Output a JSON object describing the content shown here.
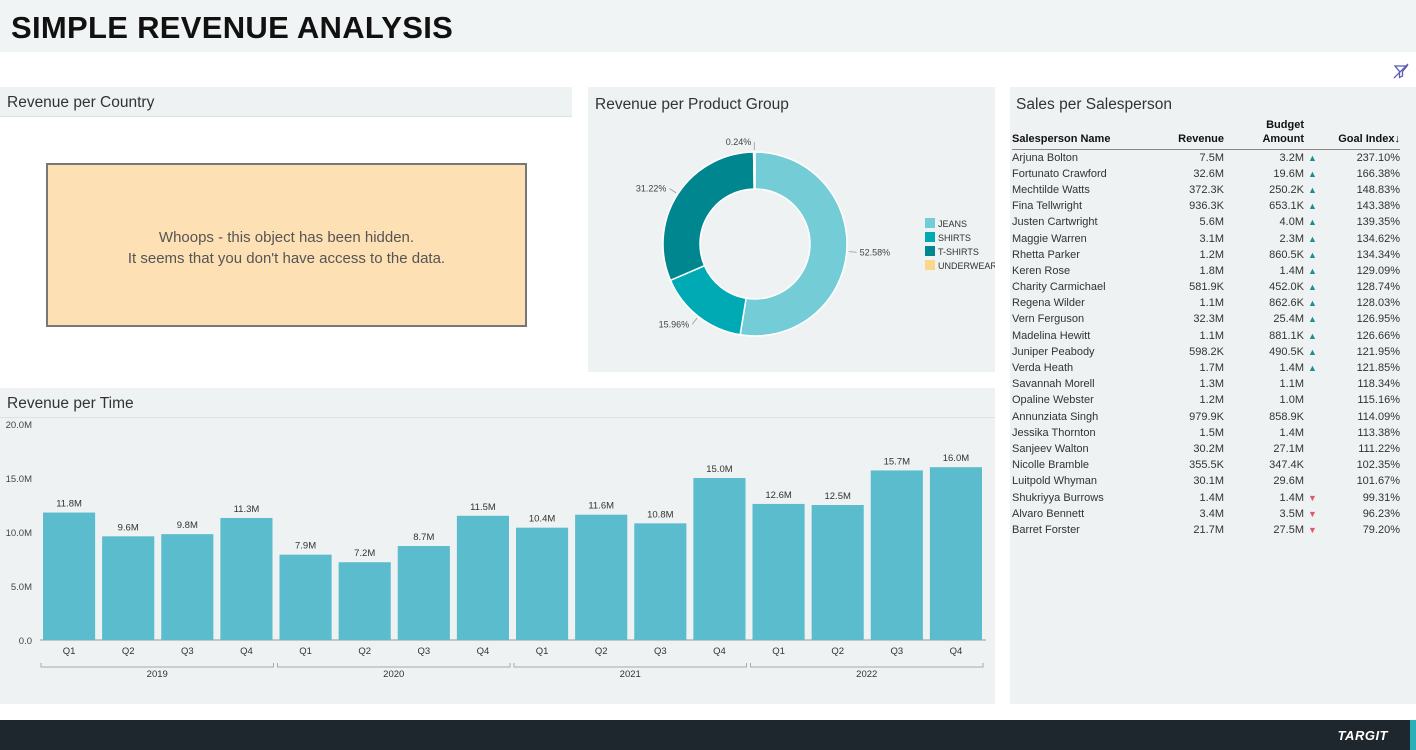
{
  "page": {
    "title": "SIMPLE REVENUE ANALYSIS",
    "brand": "TARGIT"
  },
  "colors": {
    "bar": "#5bbccd",
    "jeans": "#74ccd6",
    "shirts": "#00aab5",
    "tshirts": "#00868f",
    "underwear": "#fbd78a",
    "up": "#1e8f8f",
    "down": "#e05a6a"
  },
  "country_panel": {
    "title": "Revenue per Country",
    "message_line1": "Whoops - this object has been hidden.",
    "message_line2": "It seems that you don't have access to the data."
  },
  "product_panel": {
    "title": "Revenue per Product Group"
  },
  "time_panel": {
    "title": "Revenue per Time"
  },
  "sales_panel": {
    "title": "Sales per Salesperson",
    "columns": {
      "name": "Salesperson Name",
      "revenue": "Revenue",
      "budget_line1": "Budget",
      "budget_line2": "Amount",
      "goal": "Goal Index↓"
    },
    "rows": [
      {
        "name": "Arjuna Bolton",
        "revenue": "7.5M",
        "budget": "3.2M",
        "trend": "up",
        "goal": "237.10%"
      },
      {
        "name": "Fortunato Crawford",
        "revenue": "32.6M",
        "budget": "19.6M",
        "trend": "up",
        "goal": "166.38%"
      },
      {
        "name": "Mechtilde Watts",
        "revenue": "372.3K",
        "budget": "250.2K",
        "trend": "up",
        "goal": "148.83%"
      },
      {
        "name": "Fina Tellwright",
        "revenue": "936.3K",
        "budget": "653.1K",
        "trend": "up",
        "goal": "143.38%"
      },
      {
        "name": "Justen Cartwright",
        "revenue": "5.6M",
        "budget": "4.0M",
        "trend": "up",
        "goal": "139.35%"
      },
      {
        "name": "Maggie Warren",
        "revenue": "3.1M",
        "budget": "2.3M",
        "trend": "up",
        "goal": "134.62%"
      },
      {
        "name": "Rhetta Parker",
        "revenue": "1.2M",
        "budget": "860.5K",
        "trend": "up",
        "goal": "134.34%"
      },
      {
        "name": "Keren Rose",
        "revenue": "1.8M",
        "budget": "1.4M",
        "trend": "up",
        "goal": "129.09%"
      },
      {
        "name": "Charity Carmichael",
        "revenue": "581.9K",
        "budget": "452.0K",
        "trend": "up",
        "goal": "128.74%"
      },
      {
        "name": "Regena Wilder",
        "revenue": "1.1M",
        "budget": "862.6K",
        "trend": "up",
        "goal": "128.03%"
      },
      {
        "name": "Vern Ferguson",
        "revenue": "32.3M",
        "budget": "25.4M",
        "trend": "up",
        "goal": "126.95%"
      },
      {
        "name": "Madelina Hewitt",
        "revenue": "1.1M",
        "budget": "881.1K",
        "trend": "up",
        "goal": "126.66%"
      },
      {
        "name": "Juniper Peabody",
        "revenue": "598.2K",
        "budget": "490.5K",
        "trend": "up",
        "goal": "121.95%"
      },
      {
        "name": "Verda Heath",
        "revenue": "1.7M",
        "budget": "1.4M",
        "trend": "up",
        "goal": "121.85%"
      },
      {
        "name": "Savannah Morell",
        "revenue": "1.3M",
        "budget": "1.1M",
        "trend": "none",
        "goal": "118.34%"
      },
      {
        "name": "Opaline Webster",
        "revenue": "1.2M",
        "budget": "1.0M",
        "trend": "none",
        "goal": "115.16%"
      },
      {
        "name": "Annunziata Singh",
        "revenue": "979.9K",
        "budget": "858.9K",
        "trend": "none",
        "goal": "114.09%"
      },
      {
        "name": "Jessika Thornton",
        "revenue": "1.5M",
        "budget": "1.4M",
        "trend": "none",
        "goal": "113.38%"
      },
      {
        "name": "Sanjeev Walton",
        "revenue": "30.2M",
        "budget": "27.1M",
        "trend": "none",
        "goal": "111.22%"
      },
      {
        "name": "Nicolle Bramble",
        "revenue": "355.5K",
        "budget": "347.4K",
        "trend": "none",
        "goal": "102.35%"
      },
      {
        "name": "Luitpold Whyman",
        "revenue": "30.1M",
        "budget": "29.6M",
        "trend": "none",
        "goal": "101.67%"
      },
      {
        "name": "Shukriyya Burrows",
        "revenue": "1.4M",
        "budget": "1.4M",
        "trend": "down",
        "goal": "99.31%"
      },
      {
        "name": "Alvaro Bennett",
        "revenue": "3.4M",
        "budget": "3.5M",
        "trend": "down",
        "goal": "96.23%"
      },
      {
        "name": "Barret Forster",
        "revenue": "21.7M",
        "budget": "27.5M",
        "trend": "down",
        "goal": "79.20%"
      }
    ]
  },
  "chart_data": [
    {
      "type": "pie",
      "title": "Revenue per Product Group",
      "categories": [
        "JEANS",
        "SHIRTS",
        "T-SHIRTS",
        "UNDERWEAR"
      ],
      "values": [
        52.58,
        15.96,
        31.22,
        0.24
      ],
      "labels": [
        "52.58%",
        "15.96%",
        "31.22%",
        "0.24%"
      ],
      "legend": "right"
    },
    {
      "type": "bar",
      "title": "Revenue per Time",
      "categories": [
        "Q1",
        "Q2",
        "Q3",
        "Q4",
        "Q1",
        "Q2",
        "Q3",
        "Q4",
        "Q1",
        "Q2",
        "Q3",
        "Q4",
        "Q1",
        "Q2",
        "Q3",
        "Q4"
      ],
      "groups": [
        {
          "name": "2019",
          "count": 4
        },
        {
          "name": "2020",
          "count": 4
        },
        {
          "name": "2021",
          "count": 4
        },
        {
          "name": "2022",
          "count": 4
        }
      ],
      "values": [
        11.8,
        9.6,
        9.8,
        11.3,
        7.9,
        7.2,
        8.7,
        11.5,
        10.4,
        11.6,
        10.8,
        15.0,
        12.6,
        12.5,
        15.7,
        16.0
      ],
      "labels": [
        "11.8M",
        "9.6M",
        "9.8M",
        "11.3M",
        "7.9M",
        "7.2M",
        "8.7M",
        "11.5M",
        "10.4M",
        "11.6M",
        "10.8M",
        "15.0M",
        "12.6M",
        "12.5M",
        "15.7M",
        "16.0M"
      ],
      "yticks": [
        0,
        5,
        10,
        15,
        20
      ],
      "ytick_labels": [
        "0.0",
        "5.0M",
        "10.0M",
        "15.0M",
        "20.0M"
      ],
      "ylim": [
        0,
        20
      ],
      "ylabel": "",
      "xlabel": "",
      "grid": false
    }
  ]
}
